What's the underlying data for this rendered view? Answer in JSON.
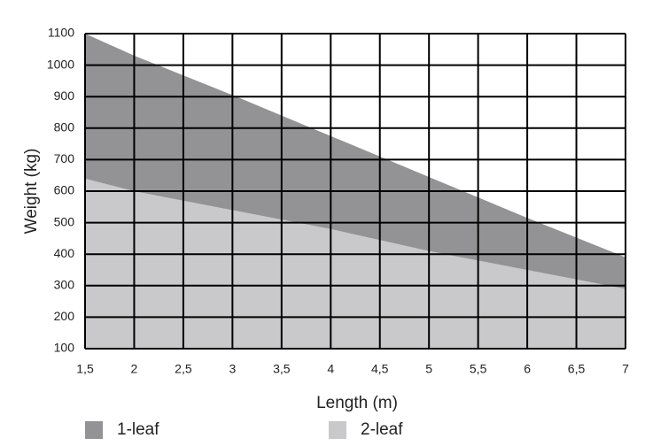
{
  "chart_data": {
    "type": "area",
    "x_label": "Length (m)",
    "y_label": "Weight (kg)",
    "x": [
      1.5,
      2,
      3,
      4,
      5,
      6,
      7
    ],
    "series": [
      {
        "name": "1-leaf",
        "color": "#939395",
        "values": [
          1100,
          1030,
          905,
          775,
          645,
          515,
          390
        ]
      },
      {
        "name": "2-leaf",
        "color": "#c9c9cb",
        "values": [
          640,
          600,
          540,
          480,
          410,
          350,
          290
        ]
      }
    ],
    "xlim": [
      1.5,
      7
    ],
    "ylim": [
      100,
      1100
    ],
    "xticks": [
      {
        "value": 1.5,
        "label": "1,5"
      },
      2,
      {
        "value": 2.5,
        "label": "2,5"
      },
      3,
      {
        "value": 3.5,
        "label": "3,5"
      },
      4,
      {
        "value": 4.5,
        "label": "4,5"
      },
      5,
      {
        "value": 5.5,
        "label": "5,5"
      },
      6,
      {
        "value": 6.5,
        "label": "6,5"
      },
      7
    ],
    "yticks": [
      100,
      200,
      300,
      400,
      500,
      600,
      700,
      800,
      900,
      1000,
      1100
    ],
    "grid": true
  }
}
